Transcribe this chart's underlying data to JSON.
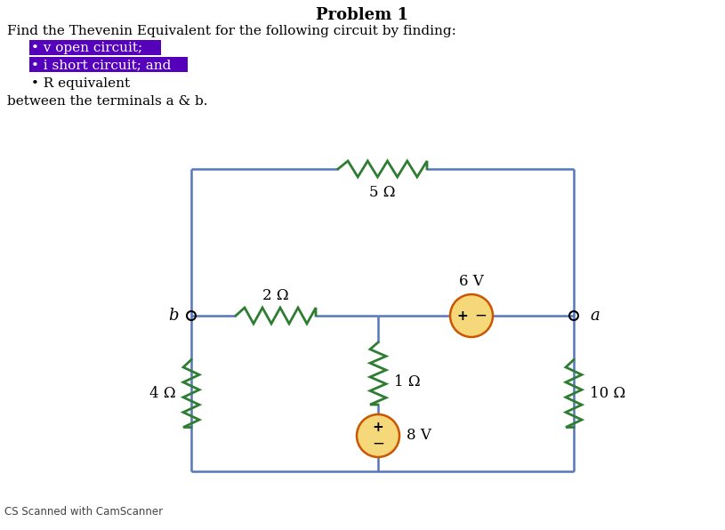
{
  "title": "Problem 1",
  "line1": "Find the Thevenin Equivalent for the following circuit by finding:",
  "bullet1": "• v open circuit;",
  "bullet2": "• i short circuit; and",
  "bullet3": "• R equivalent",
  "line_last": "between the terminals a & b.",
  "bg_color": "#ffffff",
  "wire_color": "#5577bb",
  "resistor_color": "#2e7d32",
  "source_fill": "#f5d87a",
  "source_edge": "#cc5500",
  "text_color": "#000000",
  "highlight1_color": "#5500bb",
  "highlight2_color": "#5500bb",
  "resistors": {
    "R1": "4 Ω",
    "R2": "2 Ω",
    "R3": "5 Ω",
    "R4": "1 Ω",
    "R5": "10 Ω"
  },
  "sources": {
    "V1": "8 V",
    "V2": "6 V"
  },
  "terminals": {
    "a": "a",
    "b": "b"
  },
  "footer": "CS Scanned with CamScanner"
}
